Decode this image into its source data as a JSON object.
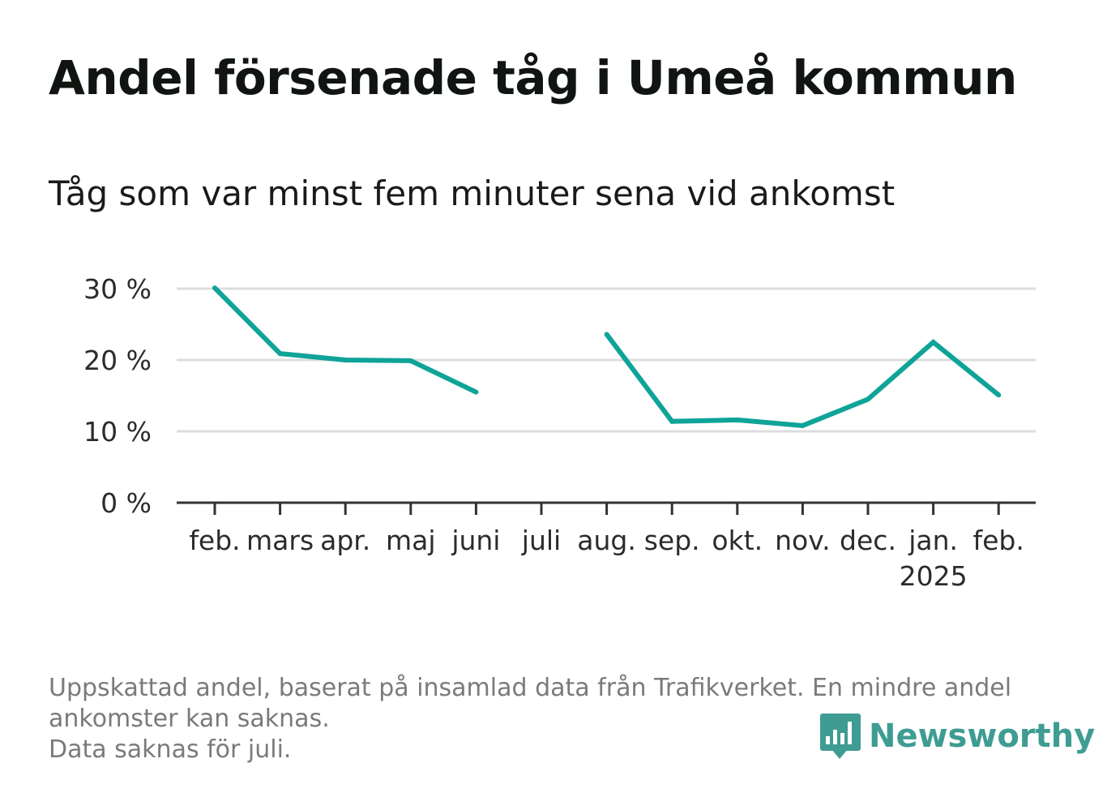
{
  "title": "Andel försenade tåg i Umeå kommun",
  "subtitle": "Tåg som var minst fem minuter sena vid ankomst",
  "notes": [
    "Uppskattad andel, baserat på insamlad data från Trafikverket. En mindre andel",
    "ankomster kan saknas.",
    "Data saknas för juli."
  ],
  "brand": {
    "name": "Newsworthy",
    "icon": "bar-chart-speech-bubble-icon",
    "color": "#3f9c92"
  },
  "chart_data": {
    "type": "line",
    "categories": [
      "feb.",
      "mars",
      "apr.",
      "maj",
      "juni",
      "juli",
      "aug.",
      "sep.",
      "okt.",
      "nov.",
      "dec.",
      "jan.",
      "feb."
    ],
    "year_label": {
      "under": "jan.",
      "text": "2025"
    },
    "series": [
      {
        "values": [
          30.1,
          20.9,
          20.0,
          19.9,
          15.5,
          null,
          23.6,
          11.4,
          11.6,
          10.8,
          14.5,
          22.5,
          15.1
        ],
        "color": "#0fa399"
      }
    ],
    "yticks": [
      0,
      10,
      20,
      30
    ],
    "ytick_labels": [
      "0 %",
      "10 %",
      "20 %",
      "30 %"
    ],
    "ylim": [
      0,
      30
    ],
    "grid": true,
    "gridline_color": "#dddddd",
    "xlabel": "",
    "ylabel": ""
  }
}
